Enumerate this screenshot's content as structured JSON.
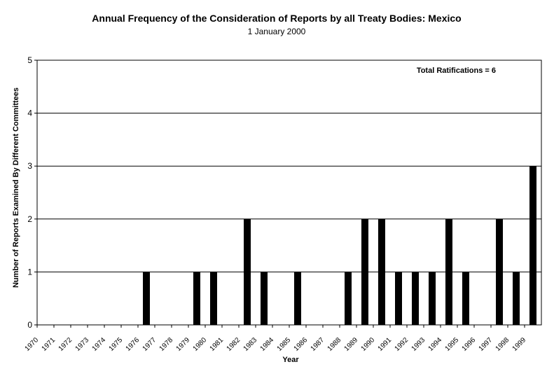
{
  "chart_data": {
    "type": "bar",
    "title": "Annual Frequency of the Consideration of Reports by all Treaty Bodies: Mexico",
    "subtitle": "1 January 2000",
    "xlabel": "Year",
    "ylabel": "Number of Reports Examined By Different Committees",
    "ylim": [
      0,
      5
    ],
    "yticks": [
      "0",
      "1",
      "2",
      "3",
      "4",
      "5"
    ],
    "grid": "horizontal",
    "annotation": "Total Ratifications = 6",
    "categories": [
      "1970",
      "1971",
      "1972",
      "1973",
      "1974",
      "1975",
      "1976",
      "1977",
      "1978",
      "1979",
      "1980",
      "1981",
      "1982",
      "1983",
      "1984",
      "1985",
      "1986",
      "1987",
      "1988",
      "1989",
      "1990",
      "1991",
      "1992",
      "1993",
      "1994",
      "1995",
      "1996",
      "1997",
      "1998",
      "1999"
    ],
    "values": [
      0,
      0,
      0,
      0,
      0,
      0,
      1,
      0,
      0,
      1,
      1,
      0,
      2,
      1,
      0,
      1,
      0,
      0,
      1,
      2,
      2,
      1,
      1,
      1,
      2,
      1,
      0,
      2,
      1,
      3
    ],
    "bar_color": "#000000",
    "plot_background": "#ffffff",
    "tick_color": "#7a3d00"
  }
}
